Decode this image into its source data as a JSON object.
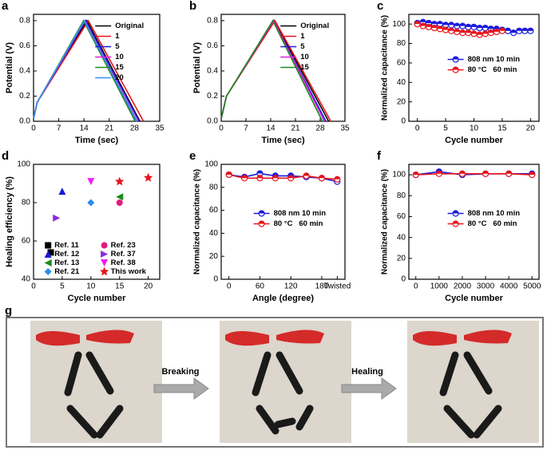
{
  "chart_data": [
    {
      "type": "line",
      "panel": "a",
      "x_label": "Time (sec)",
      "y_label": "Potential (V)",
      "xlim": [
        0,
        35
      ],
      "xticks": [
        0,
        7,
        14,
        21,
        28,
        35
      ],
      "ylim": [
        0,
        0.85
      ],
      "yticks": [
        {
          "value": 0,
          "label": "0.0"
        },
        0.2,
        0.4,
        0.6,
        0.8
      ],
      "legend": "upper right",
      "series": [
        {
          "name": "Original",
          "color": "#000000",
          "x": [
            0,
            1,
            14.8,
            29.5
          ],
          "values": [
            0.02,
            0.15,
            0.8,
            0
          ]
        },
        {
          "name": "1",
          "color": "#e8141c",
          "x": [
            0,
            1,
            15.2,
            30.5
          ],
          "values": [
            0.02,
            0.15,
            0.8,
            0
          ]
        },
        {
          "name": "5",
          "color": "#1a1adc",
          "x": [
            0,
            1,
            14.5,
            29.3
          ],
          "values": [
            0.02,
            0.15,
            0.8,
            0
          ]
        },
        {
          "name": "10",
          "color": "#e020e0",
          "x": [
            0,
            1,
            14.2,
            28.8
          ],
          "values": [
            0.02,
            0.15,
            0.8,
            0
          ]
        },
        {
          "name": "15",
          "color": "#1a8a1a",
          "x": [
            0,
            1,
            13.9,
            28.2
          ],
          "values": [
            0.02,
            0.15,
            0.8,
            0
          ]
        },
        {
          "name": "20",
          "color": "#3a8ef0",
          "x": [
            0,
            1,
            14.1,
            28.6
          ],
          "values": [
            0.02,
            0.15,
            0.8,
            0
          ]
        }
      ]
    },
    {
      "type": "line",
      "panel": "b",
      "x_label": "Time (sec)",
      "y_label": "Potential (V)",
      "xlim": [
        0,
        35
      ],
      "xticks": [
        0,
        7,
        14,
        21,
        28,
        35
      ],
      "ylim": [
        0,
        0.85
      ],
      "yticks": [
        {
          "value": 0,
          "label": "0.0"
        },
        0.2,
        0.4,
        0.6,
        0.8
      ],
      "legend": "upper right",
      "series": [
        {
          "name": "Original",
          "color": "#000000",
          "x": [
            0,
            1.5,
            15,
            30.4
          ],
          "values": [
            0.02,
            0.2,
            0.8,
            0
          ]
        },
        {
          "name": "1",
          "color": "#e8141c",
          "x": [
            0,
            1.5,
            15.2,
            31
          ],
          "values": [
            0.02,
            0.2,
            0.8,
            0
          ]
        },
        {
          "name": "5",
          "color": "#1a1adc",
          "x": [
            0,
            1.5,
            14.8,
            29.6
          ],
          "values": [
            0.02,
            0.2,
            0.8,
            0
          ]
        },
        {
          "name": "10",
          "color": "#e020e0",
          "x": [
            0,
            1.5,
            14.8,
            29.2
          ],
          "values": [
            0.02,
            0.2,
            0.8,
            0
          ]
        },
        {
          "name": "15",
          "color": "#1a8a1a",
          "x": [
            0,
            1.5,
            14.6,
            28.6
          ],
          "values": [
            0.02,
            0.2,
            0.8,
            0
          ]
        }
      ]
    },
    {
      "type": "line",
      "panel": "c",
      "x_label": "Cycle number",
      "y_label": "Normalized capacitance (%)",
      "xlim": [
        -1.5,
        21.5
      ],
      "xticks": [
        0,
        5,
        10,
        15,
        20
      ],
      "ylim": [
        0,
        110
      ],
      "yticks": [
        0,
        20,
        40,
        60,
        80,
        100
      ],
      "legend": "center right",
      "markers": true,
      "series": [
        {
          "name": "808 nm 10 min",
          "color": "#1a1adc",
          "x": [
            0,
            1,
            2,
            3,
            4,
            5,
            6,
            7,
            8,
            9,
            10,
            11,
            12,
            13,
            14,
            15,
            16,
            17,
            18,
            19,
            20
          ],
          "values": [
            101,
            102,
            101,
            100,
            100,
            99,
            99,
            98,
            98,
            97,
            97,
            96,
            96,
            95,
            95,
            94,
            93,
            91,
            93,
            93,
            93
          ]
        },
        {
          "name": "80 °C   60 min",
          "color": "#e8141c",
          "x": [
            0,
            1,
            2,
            3,
            4,
            5,
            6,
            7,
            8,
            9,
            10,
            11,
            12,
            13,
            14,
            15
          ],
          "values": [
            100,
            98,
            97,
            96,
            95,
            94,
            93,
            92,
            91,
            91,
            90,
            89,
            90,
            91,
            92,
            93
          ]
        }
      ]
    },
    {
      "type": "scatter",
      "panel": "d",
      "x_label": "Cycle number",
      "y_label": "Healing efficiency (%)",
      "xlim": [
        0,
        22
      ],
      "xticks": [
        0,
        5,
        10,
        15,
        20
      ],
      "ylim": [
        40,
        100
      ],
      "yticks": [
        40,
        60,
        80,
        100
      ],
      "legend": "lower right",
      "legend_columns": 2,
      "series": [
        {
          "name": "Ref. 11",
          "color": "#000000",
          "marker": "square",
          "x": [
            3
          ],
          "values": [
            54
          ]
        },
        {
          "name": "Ref. 23",
          "color": "#e6197f",
          "marker": "circle",
          "x": [
            15
          ],
          "values": [
            80
          ]
        },
        {
          "name": "Ref. 12",
          "color": "#1a1adc",
          "marker": "triangle-up",
          "x": [
            5
          ],
          "values": [
            86
          ]
        },
        {
          "name": "Ref. 37",
          "color": "#8a2be2",
          "marker": "triangle-right",
          "x": [
            4
          ],
          "values": [
            72
          ]
        },
        {
          "name": "Ref. 13",
          "color": "#1a8a1a",
          "marker": "triangle-left",
          "x": [
            15
          ],
          "values": [
            83
          ]
        },
        {
          "name": "Ref. 38",
          "color": "#f01ef0",
          "marker": "triangle-down",
          "x": [
            10
          ],
          "values": [
            91
          ]
        },
        {
          "name": "Ref. 21",
          "color": "#2a8ee8",
          "marker": "diamond",
          "x": [
            10
          ],
          "values": [
            80
          ]
        },
        {
          "name": "This work",
          "color": "#e8141c",
          "marker": "star",
          "x": [
            15,
            20
          ],
          "values": [
            91,
            93
          ]
        }
      ]
    },
    {
      "type": "line",
      "panel": "e",
      "x_label": "Angle (degree)",
      "y_label": "Normalized capacitance (%)",
      "xlim": [
        -15,
        225
      ],
      "xticks": [
        0,
        60,
        120,
        180,
        {
          "value": 210,
          "label": "Twisted"
        }
      ],
      "ylim": [
        0,
        100
      ],
      "yticks": [
        0,
        20,
        40,
        60,
        80,
        100
      ],
      "legend": "center right",
      "markers": true,
      "series": [
        {
          "name": "808 nm 10 min",
          "color": "#1a1adc",
          "x": [
            0,
            30,
            60,
            90,
            120,
            150,
            180,
            210
          ],
          "values": [
            91,
            89,
            92,
            90,
            90,
            89,
            88,
            85
          ]
        },
        {
          "name": "80 °C   60 min",
          "color": "#e8141c",
          "x": [
            0,
            30,
            60,
            90,
            120,
            150,
            180,
            210
          ],
          "values": [
            91,
            88,
            88,
            88,
            88,
            90,
            88,
            87
          ]
        }
      ]
    },
    {
      "type": "line",
      "panel": "f",
      "x_label": "Cycle number",
      "y_label": "Normalized capacitance (%)",
      "xlim": [
        -300,
        5300
      ],
      "xticks": [
        0,
        1000,
        2000,
        3000,
        4000,
        5000
      ],
      "ylim": [
        0,
        110
      ],
      "yticks": [
        0,
        20,
        40,
        60,
        80,
        100
      ],
      "legend": "center right",
      "markers": true,
      "series": [
        {
          "name": "808 nm 10 min",
          "color": "#1a1adc",
          "x": [
            0,
            1000,
            2000,
            3000,
            4000,
            5000
          ],
          "values": [
            100,
            103,
            100,
            101,
            101,
            101
          ]
        },
        {
          "name": "80 °C   60 min",
          "color": "#e8141c",
          "x": [
            0,
            1000,
            2000,
            3000,
            4000,
            5000
          ],
          "values": [
            100,
            101,
            101,
            101,
            101,
            100
          ]
        }
      ]
    }
  ],
  "photo_panel": {
    "label": "g",
    "arrows": [
      "Breaking",
      "Healing"
    ]
  }
}
